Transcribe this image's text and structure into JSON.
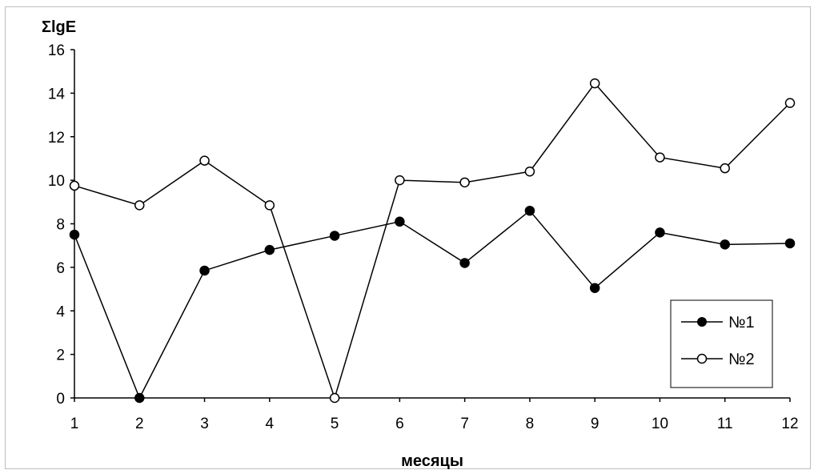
{
  "chart_data": {
    "type": "line",
    "title": "",
    "ylabel": "ΣlgE",
    "xlabel": "месяцы",
    "categories": [
      "1",
      "2",
      "3",
      "4",
      "5",
      "6",
      "7",
      "8",
      "9",
      "10",
      "11",
      "12"
    ],
    "ylim": [
      0,
      16
    ],
    "yticks": [
      "0",
      "2",
      "4",
      "6",
      "8",
      "10",
      "12",
      "14",
      "16"
    ],
    "grid": false,
    "legend_position": "bottom-right",
    "series": [
      {
        "name": "№1",
        "marker": "filled-circle",
        "color": "#000000",
        "values": [
          7.5,
          0.0,
          5.85,
          6.8,
          7.45,
          8.1,
          6.2,
          8.6,
          5.05,
          7.6,
          7.05,
          7.1
        ]
      },
      {
        "name": "№2",
        "marker": "open-circle",
        "color": "#000000",
        "values": [
          9.75,
          8.85,
          10.9,
          8.85,
          0.0,
          10.0,
          9.9,
          10.4,
          14.45,
          11.05,
          10.55,
          13.55
        ]
      }
    ]
  }
}
